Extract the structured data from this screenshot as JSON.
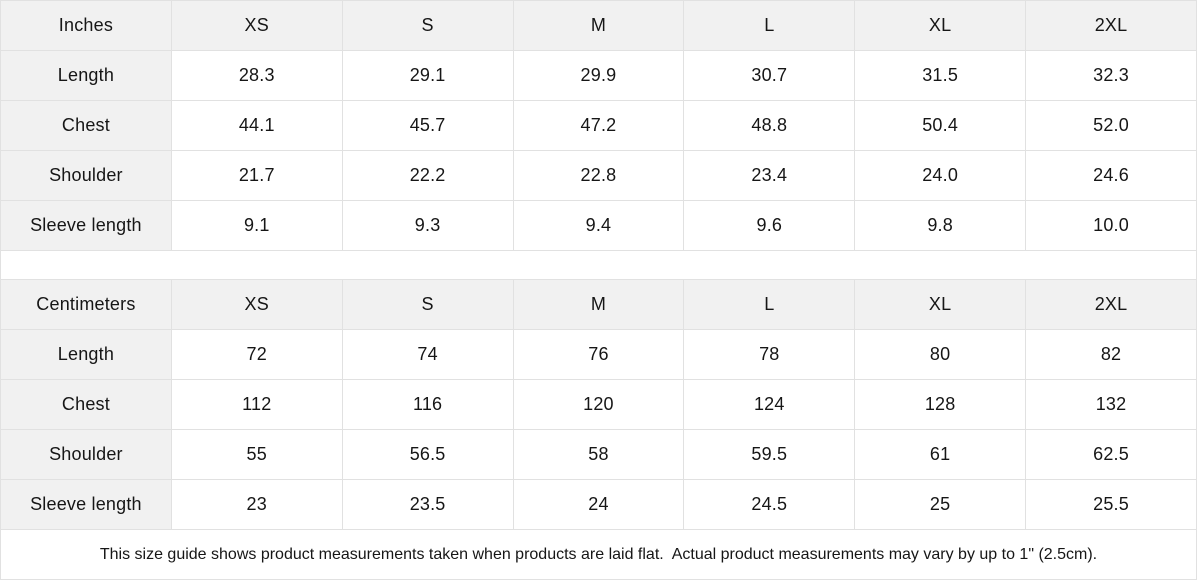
{
  "colors": {
    "header_bg": "#f1f1f1",
    "border": "#e1e1e1",
    "text": "#161616",
    "background": "#ffffff"
  },
  "tables": [
    {
      "unit_label": "Inches",
      "sizes": [
        "XS",
        "S",
        "M",
        "L",
        "XL",
        "2XL"
      ],
      "rows": [
        {
          "label": "Length",
          "values": [
            "28.3",
            "29.1",
            "29.9",
            "30.7",
            "31.5",
            "32.3"
          ]
        },
        {
          "label": "Chest",
          "values": [
            "44.1",
            "45.7",
            "47.2",
            "48.8",
            "50.4",
            "52.0"
          ]
        },
        {
          "label": "Shoulder",
          "values": [
            "21.7",
            "22.2",
            "22.8",
            "23.4",
            "24.0",
            "24.6"
          ]
        },
        {
          "label": "Sleeve length",
          "values": [
            "9.1",
            "9.3",
            "9.4",
            "9.6",
            "9.8",
            "10.0"
          ]
        }
      ]
    },
    {
      "unit_label": "Centimeters",
      "sizes": [
        "XS",
        "S",
        "M",
        "L",
        "XL",
        "2XL"
      ],
      "rows": [
        {
          "label": "Length",
          "values": [
            "72",
            "74",
            "76",
            "78",
            "80",
            "82"
          ]
        },
        {
          "label": "Chest",
          "values": [
            "112",
            "116",
            "120",
            "124",
            "128",
            "132"
          ]
        },
        {
          "label": "Shoulder",
          "values": [
            "55",
            "56.5",
            "58",
            "59.5",
            "61",
            "62.5"
          ]
        },
        {
          "label": "Sleeve length",
          "values": [
            "23",
            "23.5",
            "24",
            "24.5",
            "25",
            "25.5"
          ]
        }
      ]
    }
  ],
  "footer": {
    "note": "This size guide shows product measurements taken when products are laid flat.  Actual product measurements may vary by up to 1\" (2.5cm)."
  }
}
